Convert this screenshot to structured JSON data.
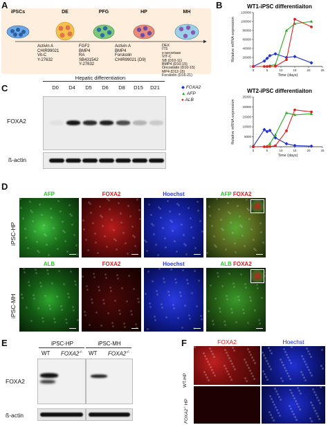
{
  "panels": {
    "A": "A",
    "B": "B",
    "C": "C",
    "D": "D",
    "E": "E",
    "F": "F"
  },
  "panel_a": {
    "stages": [
      "iPSCs",
      "DE",
      "PFG",
      "HP",
      "MH"
    ],
    "conditions": [
      [
        "Activin A",
        "CHIR99021",
        "Vit-C",
        "Y-27632"
      ],
      [
        "FGF2",
        "BMP4",
        "RA",
        "SB431542",
        "Y-27632"
      ],
      [
        "Activin A",
        "BMP4",
        "Forskolin",
        "CHIR99021 (D9)"
      ],
      [
        "DEX",
        "ITS",
        "γ-secretase",
        "VIT-C",
        "SB (D10-11)",
        "BMP4 (D10-15)",
        "Oncostatin (D10-15)",
        "MP4 (D12-15)",
        "Forskolin (D16-21)"
      ]
    ],
    "colors": {
      "background": "#fdeedd",
      "ipsc": "#6aa8e6",
      "de": "#f2c14e",
      "pfg": "#7ec87a",
      "hp": "#e98b7b",
      "mh": "#9ad1e8"
    }
  },
  "panel_b": {
    "legend": [
      {
        "label": "FOXA2",
        "color": "#2233cc",
        "marker": "diamond"
      },
      {
        "label": "AFP",
        "color": "#22aa22",
        "marker": "triangle"
      },
      {
        "label": "ALB",
        "color": "#dd2222",
        "marker": "circle"
      }
    ]
  },
  "chart_data": [
    {
      "type": "line",
      "title": "WT1-iPSC differentiaiton",
      "xlabel": "Time (days)",
      "ylabel": "Relative mRNA expression",
      "xlim": [
        0,
        25
      ],
      "ylim": [
        0,
        120000
      ],
      "xticks": [
        0,
        5,
        10,
        15,
        20,
        25
      ],
      "yticks": [
        0,
        20000,
        40000,
        60000,
        80000,
        100000,
        120000
      ],
      "series": [
        {
          "name": "FOXA2",
          "color": "#2233cc",
          "x": [
            0,
            4,
            5,
            6,
            8,
            12,
            15,
            21
          ],
          "y": [
            200,
            12000,
            18000,
            24000,
            28000,
            20000,
            22000,
            8000
          ]
        },
        {
          "name": "AFP",
          "color": "#22aa22",
          "x": [
            0,
            4,
            5,
            6,
            8,
            12,
            15,
            21
          ],
          "y": [
            0,
            200,
            500,
            2000,
            4000,
            80000,
            95000,
            100000
          ]
        },
        {
          "name": "ALB",
          "color": "#dd2222",
          "x": [
            0,
            4,
            5,
            6,
            8,
            12,
            15,
            21
          ],
          "y": [
            0,
            0,
            0,
            100,
            300,
            15000,
            105000,
            88000
          ]
        }
      ]
    },
    {
      "type": "line",
      "title": "WT2-iPSC differentiaiton",
      "xlabel": "Time (days)",
      "ylabel": "Relative mRNA expression",
      "xlim": [
        0,
        25
      ],
      "ylim": [
        0,
        25000
      ],
      "xticks": [
        0,
        5,
        10,
        15,
        20,
        25
      ],
      "yticks": [
        0,
        5000,
        10000,
        15000,
        20000,
        25000
      ],
      "series": [
        {
          "name": "FOXA2",
          "color": "#2233cc",
          "x": [
            0,
            4,
            5,
            6,
            8,
            12,
            15,
            21
          ],
          "y": [
            200,
            8600,
            7600,
            8200,
            4500,
            1500,
            600,
            300
          ]
        },
        {
          "name": "AFP",
          "color": "#22aa22",
          "x": [
            0,
            4,
            5,
            6,
            8,
            12,
            15,
            21
          ],
          "y": [
            0,
            100,
            300,
            1500,
            6000,
            17000,
            16000,
            16500
          ]
        },
        {
          "name": "ALB",
          "color": "#dd2222",
          "x": [
            0,
            4,
            5,
            6,
            8,
            12,
            15,
            21
          ],
          "y": [
            0,
            0,
            0,
            100,
            500,
            8000,
            18500,
            17500
          ]
        }
      ]
    }
  ],
  "panel_c": {
    "title": "Hepatic differentiation",
    "lanes": [
      "D0",
      "D4",
      "D5",
      "D6",
      "D8",
      "D15",
      "D21"
    ],
    "rows": [
      "FOXA2",
      "ß-actin"
    ],
    "foxa2_intensity": [
      0.05,
      0.95,
      0.85,
      0.9,
      0.7,
      0.25,
      0.15
    ]
  },
  "panel_d": {
    "columns_top": [
      "AFP",
      "FOXA2",
      "Hoechst",
      "AFP",
      "FOXA2"
    ],
    "columns_bottom": [
      "ALB",
      "FOXA2",
      "Hoechst",
      "ALB",
      "FOXA2"
    ],
    "rows": [
      "iPSC-HP",
      "iPSC-MH"
    ],
    "scale": "100 µm"
  },
  "panel_e": {
    "groups": [
      "iPSC-HP",
      "iPSC-MH"
    ],
    "lanes": [
      "WT",
      "FOXA2",
      "WT",
      "FOXA2"
    ],
    "superscript": "-/-",
    "rows": [
      "FOXA2",
      "ß-actin"
    ]
  },
  "panel_f": {
    "columns": [
      "FOXA2",
      "Hoechst"
    ],
    "rows": [
      "WT-HP",
      "HP"
    ],
    "row2_prefix": "FOXA2",
    "superscript": "-/-"
  }
}
